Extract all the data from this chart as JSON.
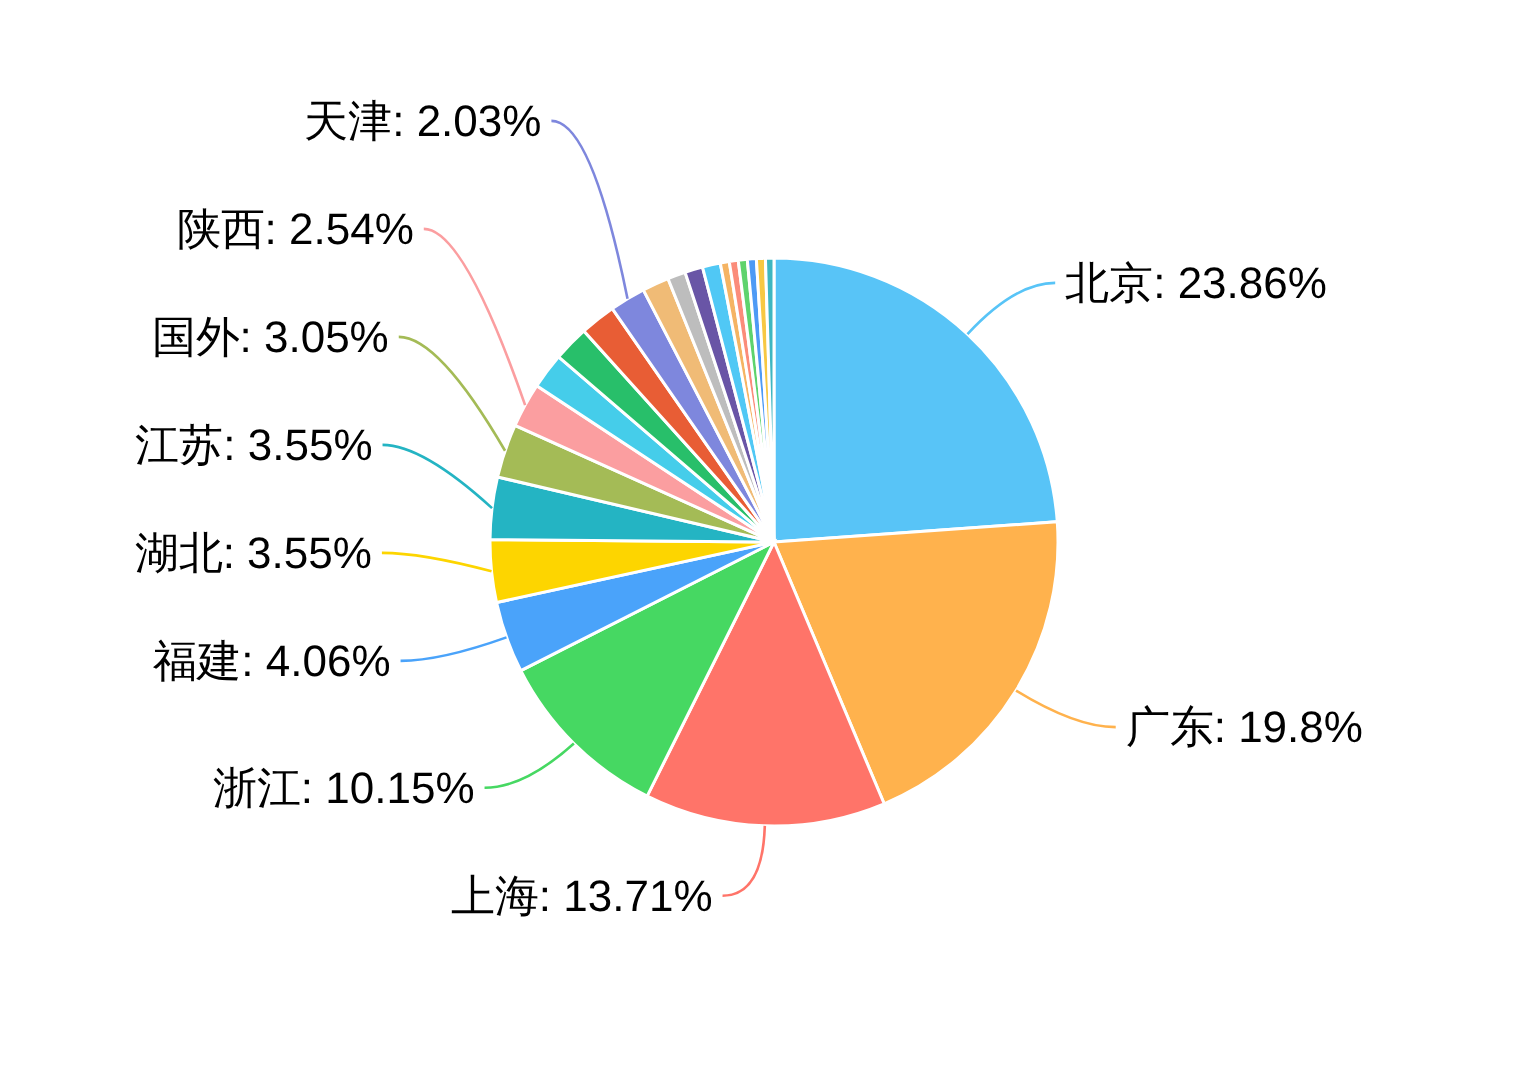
{
  "chart_data": {
    "type": "pie",
    "categories": [
      "北京",
      "广东",
      "上海",
      "浙江",
      "福建",
      "湖北",
      "江苏",
      "国外",
      "陕西",
      null,
      null,
      null,
      "天津",
      null,
      null,
      null,
      null,
      null,
      null,
      null,
      null,
      null,
      null
    ],
    "values": [
      23.86,
      19.8,
      13.71,
      10.15,
      4.06,
      3.55,
      3.55,
      3.05,
      2.54,
      2.03,
      2.03,
      2.03,
      2.03,
      1.52,
      1.02,
      1.02,
      1.02,
      0.51,
      0.51,
      0.51,
      0.51,
      0.51,
      0.48
    ],
    "colors": [
      "#58c4f7",
      "#ffb24d",
      "#ff7469",
      "#46d862",
      "#4aa3fa",
      "#fdd500",
      "#24b4c3",
      "#a4bb56",
      "#fb9ea0",
      "#45cdea",
      "#28bf6a",
      "#e85d35",
      "#7e87dd",
      "#f0bb76",
      "#bdbdbd",
      "#6955a6",
      "#50c8f5",
      "#f5b463",
      "#fb8c7a",
      "#5ed36d",
      "#4d9af5",
      "#f7c843",
      "#3fb6c0"
    ],
    "value_labels": [
      "23.86%",
      "19.8%",
      "13.71%",
      "10.15%",
      "4.06%",
      "3.55%",
      "3.55%",
      "3.05%",
      "2.54%",
      null,
      null,
      null,
      "2.03%",
      null,
      null,
      null,
      null,
      null,
      null,
      null,
      null,
      null,
      null
    ]
  }
}
